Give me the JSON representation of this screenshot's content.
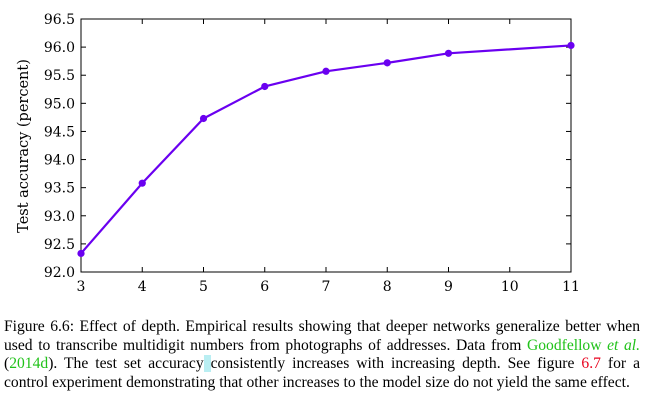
{
  "chart_data": {
    "type": "line",
    "ylabel": "Test accuracy (percent)",
    "xlabel": "",
    "x": [
      3,
      4,
      5,
      6,
      7,
      8,
      9,
      10,
      11
    ],
    "xticks": [
      "3",
      "4",
      "5",
      "6",
      "7",
      "8",
      "9",
      "10",
      "11"
    ],
    "yticks": [
      "92.0",
      "92.5",
      "93.0",
      "93.5",
      "94.0",
      "94.5",
      "95.0",
      "95.5",
      "96.0",
      "96.5"
    ],
    "xlim": [
      3,
      11
    ],
    "ylim": [
      92.0,
      96.5
    ],
    "series": [
      {
        "x": [
          3,
          4,
          5,
          6,
          7,
          8,
          9,
          11
        ],
        "values": [
          92.33,
          93.58,
          94.73,
          95.3,
          95.57,
          95.72,
          95.89,
          96.03
        ],
        "color": "#6a00f0"
      }
    ],
    "grid": false,
    "legend": "none"
  },
  "caption": {
    "part1": "Figure 6.6: Effect of depth. Empirical results showing that deeper networks generalize better when used to transcribe multidigit numbers from photographs of addresses. Data from ",
    "cite_author": "Goodfellow",
    "cite_etal": "et al.",
    "cite_open": " (",
    "cite_year": "2014d",
    "part2": "). The test set accuracy",
    "highlight": " ",
    "part3": "consistently increases with increasing depth. See figure ",
    "fig_ref": "6.7",
    "part4": " for a control experiment demonstrating that other increases to the model size do not yield the same effect."
  }
}
